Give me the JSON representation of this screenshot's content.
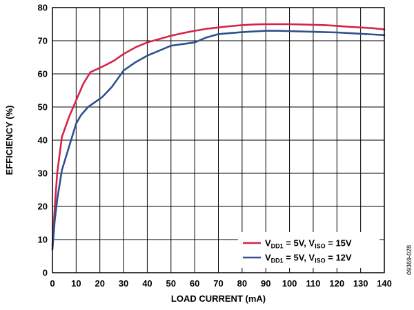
{
  "chart_data": {
    "type": "line",
    "xlabel": "LOAD CURRENT (mA)",
    "ylabel": "EFFICIENCY (%)",
    "xlim": [
      0,
      140
    ],
    "ylim": [
      0,
      80
    ],
    "xticks": [
      0,
      10,
      20,
      30,
      40,
      50,
      60,
      70,
      80,
      90,
      100,
      110,
      120,
      130,
      140
    ],
    "yticks": [
      0,
      10,
      20,
      30,
      40,
      50,
      60,
      70,
      80
    ],
    "grid": true,
    "legend_position": "bottom-right",
    "figure_id": "09369-028",
    "series": [
      {
        "name": "VDD1 = 5V, VISO = 15V",
        "label_parts": [
          {
            "text": "V",
            "sub": false
          },
          {
            "text": "DD1",
            "sub": true
          },
          {
            "text": " = 5V, V",
            "sub": false
          },
          {
            "text": "ISO",
            "sub": true
          },
          {
            "text": " = 15V",
            "sub": false
          }
        ],
        "color": "#d6234a",
        "x": [
          0,
          1,
          2,
          4,
          7,
          10,
          13,
          16,
          19,
          22,
          26,
          30,
          35,
          40,
          45,
          50,
          55,
          60,
          65,
          70,
          75,
          80,
          85,
          90,
          95,
          100,
          105,
          110,
          115,
          120,
          125,
          130,
          135,
          140
        ],
        "y": [
          8,
          20,
          30,
          41,
          47,
          52,
          57,
          60.5,
          61.5,
          62.5,
          64,
          66,
          68,
          69.5,
          70.5,
          71.5,
          72.3,
          73,
          73.6,
          74,
          74.4,
          74.7,
          74.9,
          75,
          75,
          75,
          74.9,
          74.8,
          74.7,
          74.5,
          74.2,
          74,
          73.8,
          73.4
        ]
      },
      {
        "name": "VDD1 = 5V, VISO = 12V",
        "label_parts": [
          {
            "text": "V",
            "sub": false
          },
          {
            "text": "DD1",
            "sub": true
          },
          {
            "text": " = 5V, V",
            "sub": false
          },
          {
            "text": "ISO",
            "sub": true
          },
          {
            "text": " = 12V",
            "sub": false
          }
        ],
        "color": "#2f4f8f",
        "x": [
          0,
          1,
          2,
          4,
          7,
          10,
          12,
          15,
          18,
          21,
          25,
          30,
          35,
          40,
          45,
          50,
          55,
          60,
          65,
          70,
          75,
          80,
          85,
          90,
          95,
          100,
          105,
          110,
          115,
          120,
          125,
          130,
          135,
          140
        ],
        "y": [
          7,
          16,
          22,
          31,
          38,
          45,
          47.5,
          50,
          51.5,
          53,
          56,
          61,
          63.5,
          65.5,
          67,
          68.5,
          69,
          69.5,
          71,
          72,
          72.3,
          72.6,
          72.8,
          73,
          73,
          72.9,
          72.8,
          72.7,
          72.6,
          72.5,
          72.3,
          72.1,
          71.9,
          71.7
        ]
      }
    ]
  }
}
